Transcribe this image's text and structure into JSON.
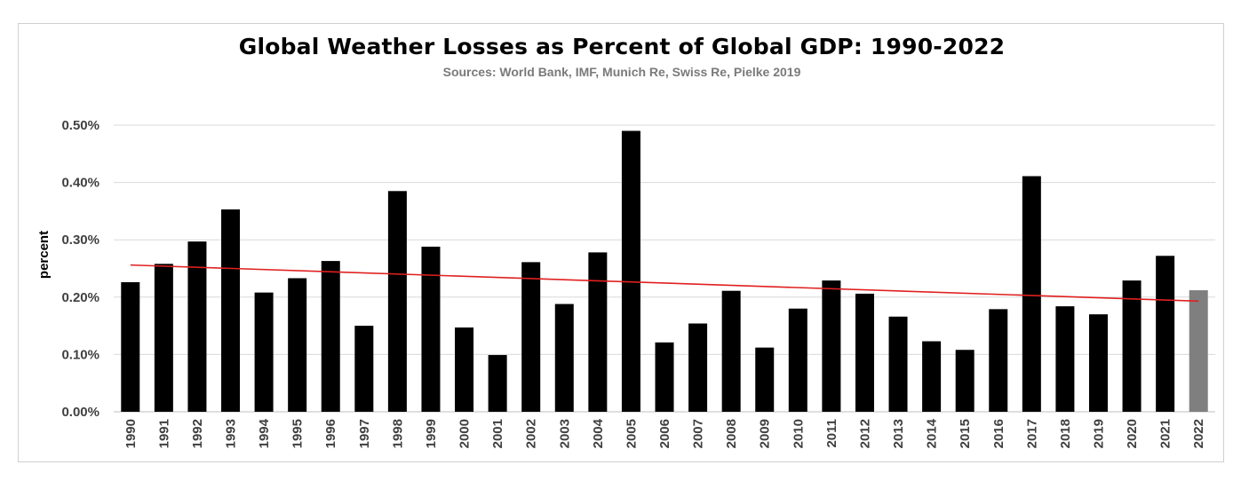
{
  "chart_data": {
    "type": "bar",
    "title": "Global Weather Losses as Percent of Global GDP: 1990-2022",
    "subtitle": "Sources: World Bank, IMF, Munich Re, Swiss Re, Pielke 2019",
    "xlabel": "",
    "ylabel": "percent",
    "ylim": [
      0,
      0.5
    ],
    "yticks": [
      "0.00%",
      "0.10%",
      "0.20%",
      "0.30%",
      "0.40%",
      "0.50%"
    ],
    "grid": true,
    "categories": [
      "1990",
      "1991",
      "1992",
      "1993",
      "1994",
      "1995",
      "1996",
      "1997",
      "1998",
      "1999",
      "2000",
      "2001",
      "2002",
      "2003",
      "2004",
      "2005",
      "2006",
      "2007",
      "2008",
      "2009",
      "2010",
      "2011",
      "2012",
      "2013",
      "2014",
      "2015",
      "2016",
      "2017",
      "2018",
      "2019",
      "2020",
      "2021",
      "2022"
    ],
    "values": [
      0.226,
      0.258,
      0.297,
      0.353,
      0.208,
      0.233,
      0.263,
      0.15,
      0.385,
      0.288,
      0.147,
      0.099,
      0.261,
      0.188,
      0.278,
      0.49,
      0.121,
      0.154,
      0.211,
      0.112,
      0.18,
      0.229,
      0.206,
      0.166,
      0.123,
      0.108,
      0.179,
      0.411,
      0.184,
      0.17,
      0.229,
      0.272,
      0.212
    ],
    "bar_colors": {
      "default": "#000000",
      "2022": "#7f7f7f"
    },
    "trendline": {
      "color": "#e02020",
      "start": 0.256,
      "end": 0.193
    }
  }
}
